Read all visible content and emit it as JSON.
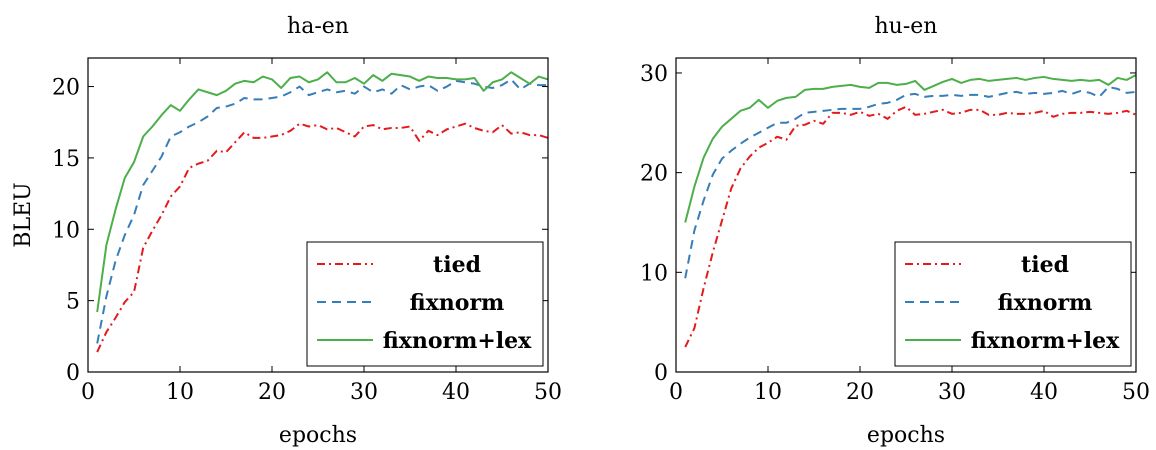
{
  "chart_data": [
    {
      "type": "line",
      "title": "ha-en",
      "xlabel": "epochs",
      "ylabel": "BLEU",
      "xlim": [
        0,
        50
      ],
      "ylim": [
        0,
        22
      ],
      "xticks": [
        0,
        10,
        20,
        30,
        40,
        50
      ],
      "yticks": [
        0,
        5,
        10,
        15,
        20
      ],
      "grid": false,
      "legend_position": "bottom-right",
      "x": [
        1,
        2,
        3,
        4,
        5,
        6,
        7,
        8,
        9,
        10,
        11,
        12,
        13,
        14,
        15,
        16,
        17,
        18,
        19,
        20,
        21,
        22,
        23,
        24,
        25,
        26,
        27,
        28,
        29,
        30,
        31,
        32,
        33,
        34,
        35,
        36,
        37,
        38,
        39,
        40,
        41,
        42,
        43,
        44,
        45,
        46,
        47,
        48,
        49,
        50
      ],
      "series": [
        {
          "name": "tied",
          "color": "#e41a1c",
          "dash": "dashdot",
          "values": [
            1.4,
            2.8,
            3.8,
            4.9,
            5.6,
            8.7,
            9.9,
            11.0,
            12.3,
            13.0,
            14.3,
            14.6,
            14.8,
            15.5,
            15.4,
            16.1,
            16.8,
            16.4,
            16.4,
            16.5,
            16.6,
            16.9,
            17.4,
            17.2,
            17.3,
            17.0,
            17.1,
            16.8,
            16.5,
            17.2,
            17.3,
            17.0,
            17.1,
            17.1,
            17.2,
            16.2,
            16.9,
            16.6,
            17.0,
            17.2,
            17.4,
            17.1,
            16.9,
            16.8,
            17.3,
            16.7,
            16.8,
            16.6,
            16.6,
            16.4
          ]
        },
        {
          "name": "fixnorm",
          "color": "#377eb8",
          "dash": "dashed",
          "values": [
            2.0,
            5.3,
            7.8,
            9.6,
            11.0,
            13.1,
            14.1,
            15.1,
            16.5,
            16.8,
            17.2,
            17.5,
            17.9,
            18.5,
            18.6,
            18.8,
            19.2,
            19.1,
            19.1,
            19.2,
            19.3,
            19.6,
            20.0,
            19.4,
            19.6,
            19.8,
            19.6,
            19.7,
            19.5,
            20.0,
            19.6,
            19.8,
            19.5,
            20.1,
            19.8,
            20.0,
            20.1,
            19.7,
            20.0,
            20.4,
            20.3,
            20.2,
            20.0,
            19.9,
            20.1,
            20.5,
            19.8,
            20.2,
            20.1,
            20.1
          ]
        },
        {
          "name": "fixnorm+lex",
          "color": "#4daf4a",
          "dash": "solid",
          "values": [
            4.2,
            8.9,
            11.4,
            13.6,
            14.7,
            16.5,
            17.2,
            18.0,
            18.7,
            18.3,
            19.1,
            19.8,
            19.6,
            19.4,
            19.7,
            20.2,
            20.4,
            20.3,
            20.7,
            20.5,
            19.9,
            20.6,
            20.7,
            20.3,
            20.5,
            21.0,
            20.3,
            20.3,
            20.6,
            20.2,
            20.8,
            20.4,
            20.9,
            20.8,
            20.7,
            20.4,
            20.7,
            20.6,
            20.6,
            20.5,
            20.5,
            20.6,
            19.7,
            20.3,
            20.5,
            21.0,
            20.6,
            20.2,
            20.7,
            20.5
          ]
        }
      ]
    },
    {
      "type": "line",
      "title": "hu-en",
      "xlabel": "epochs",
      "ylabel": "",
      "xlim": [
        0,
        50
      ],
      "ylim": [
        0,
        31.5
      ],
      "xticks": [
        0,
        10,
        20,
        30,
        40,
        50
      ],
      "yticks": [
        0,
        10,
        20,
        30
      ],
      "grid": false,
      "legend_position": "bottom-right",
      "x": [
        1,
        2,
        3,
        4,
        5,
        6,
        7,
        8,
        9,
        10,
        11,
        12,
        13,
        14,
        15,
        16,
        17,
        18,
        19,
        20,
        21,
        22,
        23,
        24,
        25,
        26,
        27,
        28,
        29,
        30,
        31,
        32,
        33,
        34,
        35,
        36,
        37,
        38,
        39,
        40,
        41,
        42,
        43,
        44,
        45,
        46,
        47,
        48,
        49,
        50
      ],
      "series": [
        {
          "name": "tied",
          "color": "#e41a1c",
          "dash": "dashdot",
          "values": [
            2.5,
            4.4,
            8.4,
            12.0,
            15.2,
            18.4,
            20.4,
            21.6,
            22.5,
            23.0,
            23.6,
            23.3,
            24.7,
            24.8,
            25.2,
            24.9,
            26.0,
            26.0,
            25.8,
            26.1,
            25.7,
            25.9,
            25.4,
            26.2,
            26.6,
            25.8,
            25.9,
            26.1,
            26.3,
            25.9,
            26.0,
            26.3,
            26.3,
            25.8,
            25.8,
            26.0,
            25.9,
            25.9,
            26.0,
            26.2,
            25.6,
            25.9,
            26.0,
            26.0,
            26.1,
            26.0,
            25.9,
            26.0,
            26.2,
            25.8
          ]
        },
        {
          "name": "fixnorm",
          "color": "#377eb8",
          "dash": "dashed",
          "values": [
            9.4,
            14.2,
            17.2,
            19.8,
            21.4,
            22.2,
            22.9,
            23.5,
            24.0,
            24.5,
            25.0,
            25.0,
            25.4,
            26.0,
            26.1,
            26.2,
            26.3,
            26.4,
            26.4,
            26.4,
            26.6,
            26.9,
            27.0,
            27.3,
            27.8,
            27.9,
            27.6,
            27.7,
            27.7,
            27.8,
            27.7,
            27.8,
            27.8,
            27.6,
            27.8,
            28.0,
            28.1,
            27.9,
            28.0,
            27.9,
            28.0,
            28.2,
            27.9,
            28.2,
            28.0,
            27.6,
            28.6,
            28.4,
            28.0,
            28.1
          ]
        },
        {
          "name": "fixnorm+lex",
          "color": "#4daf4a",
          "dash": "solid",
          "values": [
            15.0,
            18.6,
            21.5,
            23.4,
            24.6,
            25.4,
            26.2,
            26.5,
            27.3,
            26.5,
            27.2,
            27.5,
            27.6,
            28.3,
            28.4,
            28.4,
            28.6,
            28.7,
            28.8,
            28.6,
            28.5,
            29.0,
            29.0,
            28.8,
            28.9,
            29.2,
            28.3,
            28.7,
            29.1,
            29.4,
            29.0,
            29.3,
            29.4,
            29.2,
            29.3,
            29.4,
            29.5,
            29.3,
            29.5,
            29.6,
            29.4,
            29.3,
            29.2,
            29.3,
            29.2,
            29.3,
            28.8,
            29.5,
            29.3,
            29.8
          ]
        }
      ]
    }
  ]
}
